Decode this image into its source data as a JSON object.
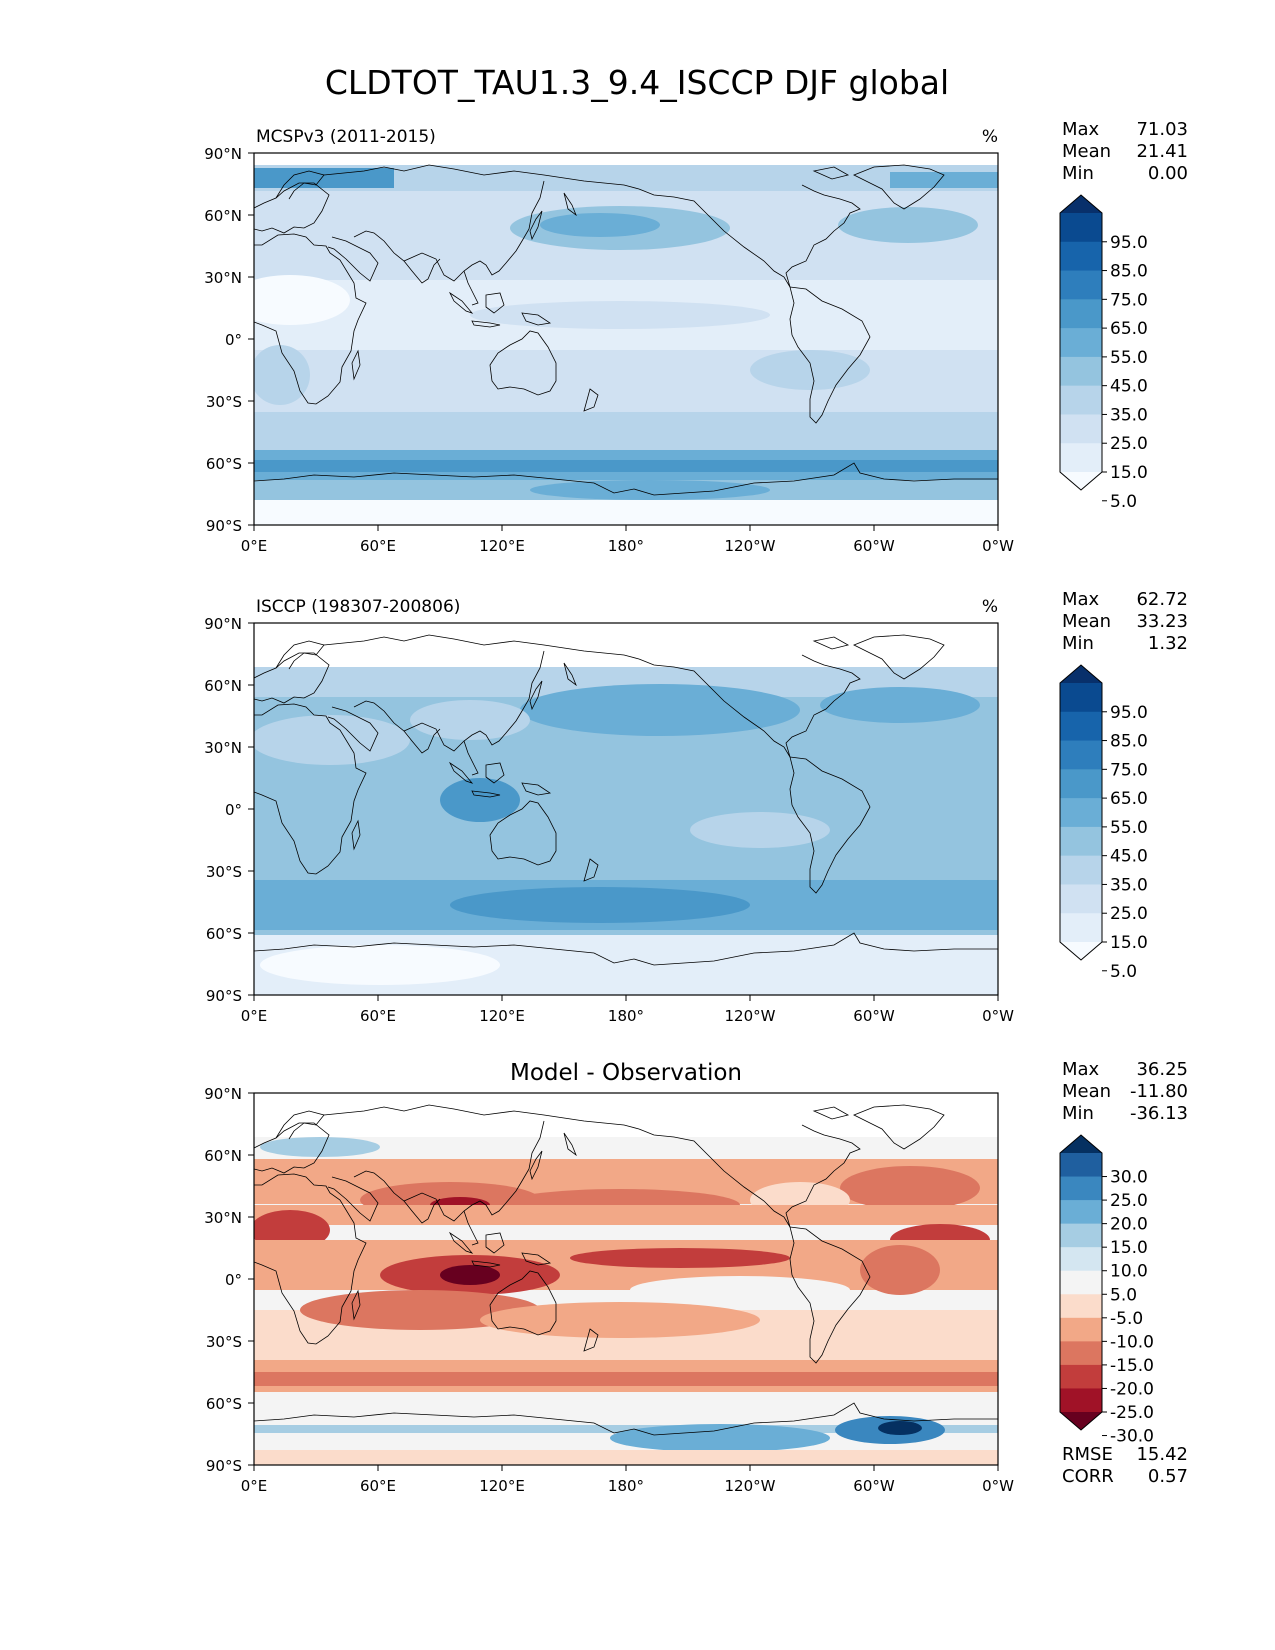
{
  "figure": {
    "title": "CLDTOT_TAU1.3_9.4_ISCCP DJF global"
  },
  "axes": {
    "lat_labels": [
      "90°N",
      "60°N",
      "30°N",
      "0°",
      "30°S",
      "60°S",
      "90°S"
    ],
    "lon_labels": [
      "0°E",
      "60°E",
      "120°E",
      "180°",
      "120°W",
      "60°W",
      "0°W"
    ]
  },
  "panels": [
    {
      "id": "model",
      "left_title": "MCSPv3 (2011-2015)",
      "center_title": "",
      "right_title": "%",
      "stats": [
        {
          "label": "Max",
          "value": "71.03"
        },
        {
          "label": "Mean",
          "value": "21.41"
        },
        {
          "label": "Min",
          "value": "0.00"
        }
      ],
      "colorbar": {
        "scheme": "sequential-blue",
        "labels": [
          "95.0",
          "85.0",
          "75.0",
          "65.0",
          "55.0",
          "45.0",
          "35.0",
          "25.0",
          "15.0",
          "5.0"
        ],
        "colors": [
          "#08306b",
          "#0a4a90",
          "#1764ab",
          "#2e7ebc",
          "#4a98c9",
          "#6aaed6",
          "#94c4df",
          "#b7d4ea",
          "#d0e1f2",
          "#e3eef9",
          "#f7fbff"
        ]
      },
      "metrics": []
    },
    {
      "id": "obs",
      "left_title": "ISCCP (198307-200806)",
      "center_title": "",
      "right_title": "%",
      "stats": [
        {
          "label": "Max",
          "value": "62.72"
        },
        {
          "label": "Mean",
          "value": "33.23"
        },
        {
          "label": "Min",
          "value": "1.32"
        }
      ],
      "colorbar": {
        "scheme": "sequential-blue",
        "labels": [
          "95.0",
          "85.0",
          "75.0",
          "65.0",
          "55.0",
          "45.0",
          "35.0",
          "25.0",
          "15.0",
          "5.0"
        ],
        "colors": [
          "#08306b",
          "#0a4a90",
          "#1764ab",
          "#2e7ebc",
          "#4a98c9",
          "#6aaed6",
          "#94c4df",
          "#b7d4ea",
          "#d0e1f2",
          "#e3eef9",
          "#f7fbff"
        ]
      },
      "metrics": []
    },
    {
      "id": "diff",
      "left_title": "",
      "center_title": "Model - Observation",
      "right_title": "",
      "stats": [
        {
          "label": "Max",
          "value": "36.25"
        },
        {
          "label": "Mean",
          "value": "-11.80"
        },
        {
          "label": "Min",
          "value": "-36.13"
        }
      ],
      "colorbar": {
        "scheme": "diverging-red-blue",
        "labels": [
          "30.0",
          "25.0",
          "20.0",
          "15.0",
          "10.0",
          "5.0",
          "-5.0",
          "-10.0",
          "-15.0",
          "-20.0",
          "-25.0",
          "-30.0"
        ],
        "colors": [
          "#053061",
          "#1f5f9f",
          "#3a87bf",
          "#6aaed6",
          "#a6cde3",
          "#d4e6f1",
          "#f4f4f4",
          "#fbdccb",
          "#f2a887",
          "#dc7660",
          "#c23d3c",
          "#a01227",
          "#67001f"
        ]
      },
      "metrics": [
        {
          "label": "RMSE",
          "value": "15.42"
        },
        {
          "label": "CORR",
          "value": "0.57"
        }
      ]
    }
  ],
  "chart_data": {
    "type": "heatmap",
    "title": "CLDTOT_TAU1.3_9.4_ISCCP DJF global",
    "xlabel": "",
    "ylabel": "",
    "x_range": [
      0,
      360
    ],
    "y_range": [
      -90,
      90
    ],
    "x_ticks": [
      "0°E",
      "60°E",
      "120°E",
      "180°",
      "120°W",
      "60°W",
      "0°W"
    ],
    "y_ticks": [
      "90°N",
      "60°N",
      "30°N",
      "0°",
      "30°S",
      "60°S",
      "90°S"
    ],
    "panels": [
      {
        "name": "MCSPv3 (2011-2015)",
        "units": "%",
        "max": 71.03,
        "mean": 21.41,
        "min": 0.0,
        "levels": [
          5,
          15,
          25,
          35,
          45,
          55,
          65,
          75,
          85,
          95
        ],
        "zonal_profile": {
          "lat": [
            85,
            75,
            65,
            55,
            45,
            35,
            25,
            15,
            5,
            -5,
            -15,
            -25,
            -35,
            -45,
            -55,
            -65,
            -75,
            -85
          ],
          "value": [
            30,
            38,
            30,
            33,
            28,
            22,
            18,
            15,
            15,
            17,
            20,
            22,
            23,
            25,
            38,
            40,
            15,
            5
          ]
        }
      },
      {
        "name": "ISCCP (198307-200806)",
        "units": "%",
        "max": 62.72,
        "mean": 33.23,
        "min": 1.32,
        "levels": [
          5,
          15,
          25,
          35,
          45,
          55,
          65,
          75,
          85,
          95
        ],
        "zonal_profile": {
          "lat": [
            85,
            75,
            65,
            55,
            45,
            35,
            25,
            15,
            5,
            -5,
            -15,
            -25,
            -35,
            -45,
            -55,
            -65,
            -75,
            -85
          ],
          "value": [
            0,
            0,
            30,
            33,
            38,
            38,
            30,
            33,
            38,
            40,
            38,
            35,
            38,
            45,
            44,
            35,
            10,
            8
          ]
        }
      },
      {
        "name": "Model - Observation",
        "units": "%",
        "max": 36.25,
        "mean": -11.8,
        "min": -36.13,
        "rmse": 15.42,
        "corr": 0.57,
        "levels": [
          -30,
          -25,
          -20,
          -15,
          -10,
          -5,
          5,
          10,
          15,
          20,
          25,
          30
        ],
        "zonal_profile": {
          "lat": [
            85,
            75,
            65,
            55,
            45,
            35,
            25,
            15,
            5,
            -5,
            -15,
            -25,
            -35,
            -45,
            -55,
            -65,
            -75,
            -85
          ],
          "value": [
            0,
            10,
            -2,
            -8,
            -15,
            -18,
            -15,
            -18,
            -23,
            -23,
            -18,
            -12,
            -15,
            -20,
            -6,
            8,
            8,
            -2
          ]
        }
      }
    ]
  }
}
